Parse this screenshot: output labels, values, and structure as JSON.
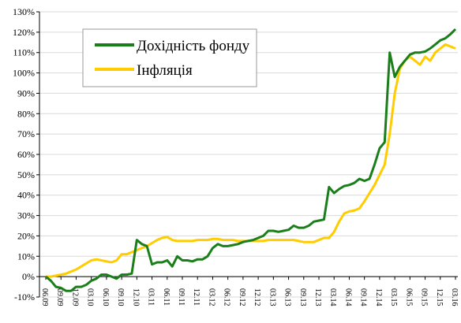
{
  "chart_data": {
    "type": "line",
    "categories": [
      "06.09",
      null,
      null,
      "09.09",
      null,
      null,
      "12.09",
      null,
      null,
      "03.10",
      null,
      null,
      "06.10",
      null,
      null,
      "09.10",
      null,
      null,
      "12.10",
      null,
      null,
      "03.11",
      null,
      null,
      "06.11",
      null,
      null,
      "09.11",
      null,
      null,
      "12.11",
      null,
      null,
      "03.12",
      null,
      null,
      "06.12",
      null,
      null,
      "09.12",
      null,
      null,
      "12.12",
      null,
      null,
      "03.13",
      null,
      null,
      "06.13",
      null,
      null,
      "09.13",
      null,
      null,
      "12.13",
      null,
      null,
      "03.14",
      null,
      null,
      "06.14",
      null,
      null,
      "09.14",
      null,
      null,
      "12.14",
      null,
      null,
      "03.15",
      null,
      null,
      "06.15",
      null,
      null,
      "09.15",
      null,
      null,
      "12.15",
      null,
      null,
      "03.16"
    ],
    "series": [
      {
        "name": "Дохідність фонду",
        "color": "#1a7f1a",
        "values": [
          0,
          -2,
          -5,
          -5.5,
          -7,
          -7,
          -5,
          -5,
          -4,
          -2,
          -1,
          1,
          1,
          0,
          -1,
          1,
          1,
          1.5,
          18,
          16,
          15,
          6,
          7,
          7,
          8,
          5,
          10,
          8,
          8,
          7.5,
          8.5,
          8.5,
          10,
          14,
          16,
          15,
          15,
          15.5,
          16,
          17,
          17.5,
          18,
          19,
          20,
          22.5,
          22.5,
          22,
          22.5,
          23,
          25,
          24,
          24,
          25,
          27,
          27.5,
          28,
          44,
          41,
          43,
          44.5,
          45,
          46,
          48,
          47,
          48,
          55,
          63,
          66,
          110,
          98,
          103,
          106,
          109,
          110,
          110,
          110.5,
          112,
          114,
          116,
          117,
          119,
          121.5
        ]
      },
      {
        "name": "Інфляція",
        "color": "#ffcc00",
        "values": [
          0,
          0,
          0.5,
          1,
          1.5,
          2.5,
          3.5,
          5,
          6.5,
          8,
          8.5,
          8,
          7.5,
          7,
          8,
          11,
          11,
          12,
          13,
          14,
          15,
          16.5,
          18,
          19,
          19.5,
          18,
          17.5,
          17.5,
          17.5,
          17.5,
          18,
          18,
          18,
          18.5,
          18.5,
          18,
          18,
          18,
          17.5,
          17.5,
          17.5,
          17.5,
          17.5,
          17.5,
          18,
          18,
          18,
          18,
          18,
          18,
          17.5,
          17,
          17,
          17,
          18,
          19,
          19,
          22,
          27,
          31,
          32,
          32.5,
          33.5,
          37,
          41,
          45,
          50,
          55,
          70,
          90,
          102,
          106,
          108,
          106,
          104,
          108,
          106,
          110,
          112,
          114,
          113,
          112
        ]
      }
    ],
    "ylim": [
      -10,
      130
    ],
    "yticks": [
      {
        "value": -10,
        "label": "-10%"
      },
      {
        "value": 0,
        "label": "0%"
      },
      {
        "value": 10,
        "label": "10%"
      },
      {
        "value": 20,
        "label": "20%"
      },
      {
        "value": 30,
        "label": "30%"
      },
      {
        "value": 40,
        "label": "40%"
      },
      {
        "value": 50,
        "label": "50%"
      },
      {
        "value": 60,
        "label": "60%"
      },
      {
        "value": 70,
        "label": "70%"
      },
      {
        "value": 80,
        "label": "80%"
      },
      {
        "value": 90,
        "label": "90%"
      },
      {
        "value": 100,
        "label": "100%"
      },
      {
        "value": 110,
        "label": "110%"
      },
      {
        "value": 120,
        "label": "120%"
      },
      {
        "value": 130,
        "label": "130%"
      }
    ],
    "grid": true
  }
}
